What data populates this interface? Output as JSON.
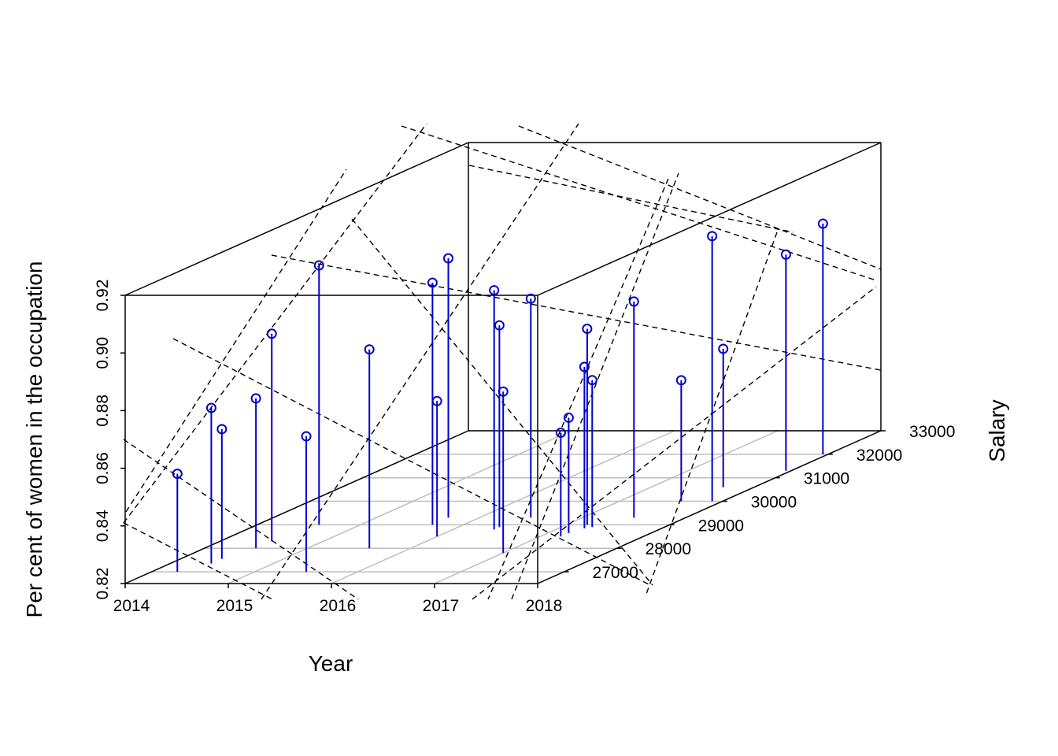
{
  "chart_data": {
    "type": "scatter",
    "subtype": "3d-scatterplot-with-drop-lines",
    "title": "",
    "xlabel": "Year",
    "ylabel": "Salary",
    "zlabel": "Per cent of women in the occupation",
    "xlim": [
      2014,
      2018
    ],
    "ylim": [
      26500,
      33000
    ],
    "zlim": [
      0.82,
      0.92
    ],
    "x_ticks": [
      "2014",
      "2015",
      "2016",
      "2017",
      "2018"
    ],
    "y_ticks": [
      "27000",
      "28000",
      "29000",
      "30000",
      "31000",
      "32000",
      "33000"
    ],
    "z_ticks": [
      "0.82",
      "0.84",
      "0.86",
      "0.88",
      "0.90",
      "0.92"
    ],
    "grid": "floor grid lines",
    "regression_plane": true,
    "colors": {
      "points": "#0000CD",
      "grid": "#BEBEBE",
      "box": "#000000",
      "plane": "#000000"
    },
    "points": [
      {
        "x": 2014.25,
        "y": 27000,
        "z": 0.854
      },
      {
        "x": 2014.4,
        "y": 27350,
        "z": 0.874
      },
      {
        "x": 2014.4,
        "y": 27550,
        "z": 0.865
      },
      {
        "x": 2014.5,
        "y": 28000,
        "z": 0.872
      },
      {
        "x": 2014.5,
        "y": 28300,
        "z": 0.892
      },
      {
        "x": 2014.6,
        "y": 29000,
        "z": 0.91
      },
      {
        "x": 2015.5,
        "y": 27000,
        "z": 0.867
      },
      {
        "x": 2015.6,
        "y": 28000,
        "z": 0.889
      },
      {
        "x": 2015.7,
        "y": 29000,
        "z": 0.904
      },
      {
        "x": 2015.7,
        "y": 29300,
        "z": 0.91
      },
      {
        "x": 2016.0,
        "y": 28500,
        "z": 0.867
      },
      {
        "x": 2016.4,
        "y": 28800,
        "z": 0.903
      },
      {
        "x": 2016.4,
        "y": 28900,
        "z": 0.89
      },
      {
        "x": 2016.5,
        "y": 29300,
        "z": 0.896
      },
      {
        "x": 2017.0,
        "y": 27800,
        "z": 0.876
      },
      {
        "x": 2017.2,
        "y": 28500,
        "z": 0.856
      },
      {
        "x": 2017.2,
        "y": 28650,
        "z": 0.86
      },
      {
        "x": 2017.25,
        "y": 28850,
        "z": 0.876
      },
      {
        "x": 2017.2,
        "y": 29000,
        "z": 0.888
      },
      {
        "x": 2017.3,
        "y": 28900,
        "z": 0.871
      },
      {
        "x": 2017.5,
        "y": 29300,
        "z": 0.895
      },
      {
        "x": 2017.6,
        "y": 30000,
        "z": 0.862
      },
      {
        "x": 2017.7,
        "y": 30600,
        "z": 0.868
      },
      {
        "x": 2017.9,
        "y": 30000,
        "z": 0.912
      },
      {
        "x": 2017.95,
        "y": 31300,
        "z": 0.895
      },
      {
        "x": 2017.95,
        "y": 32000,
        "z": 0.9
      }
    ]
  }
}
